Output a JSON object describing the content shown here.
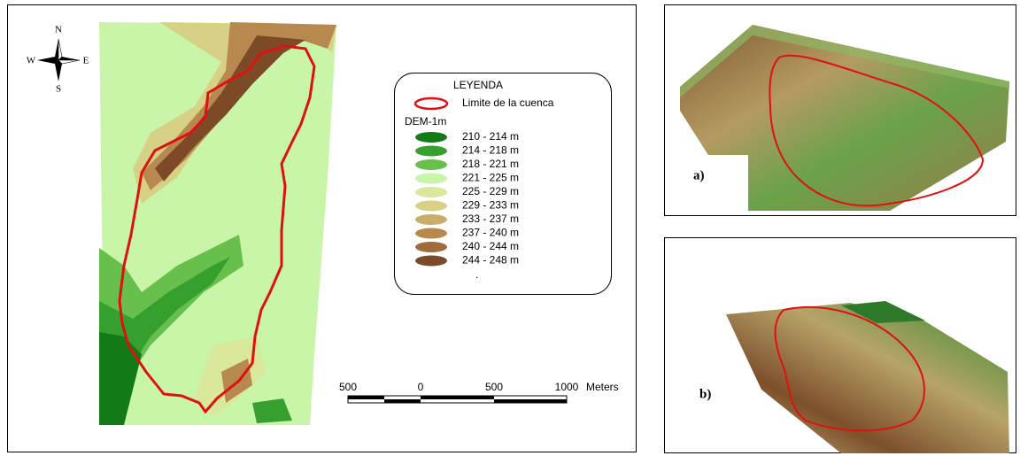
{
  "compass": {
    "n": "N",
    "s": "S",
    "e": "E",
    "w": "W"
  },
  "legend": {
    "title": "LEYENDA",
    "boundary": "Limite de la cuenca",
    "dem_title": "DEM-1m",
    "classes": [
      {
        "label": "210 - 214 m",
        "color": "#137a18"
      },
      {
        "label": "214 - 218 m",
        "color": "#36a02e"
      },
      {
        "label": "218 - 221 m",
        "color": "#67c04b"
      },
      {
        "label": "221 - 225 m",
        "color": "#c9f5a8"
      },
      {
        "label": "225 - 229 m",
        "color": "#d9e89a"
      },
      {
        "label": "229 - 233 m",
        "color": "#d7d186"
      },
      {
        "label": "233 - 237 m",
        "color": "#c9ad6a"
      },
      {
        "label": "237 - 240 m",
        "color": "#b8894e"
      },
      {
        "label": "240 - 244 m",
        "color": "#a06a3c"
      },
      {
        "label": "244 - 248 m",
        "color": "#7d4a28"
      }
    ],
    "note": "."
  },
  "scale_bar": {
    "ticks": [
      "500",
      "0",
      "500",
      "1000"
    ],
    "unit": "Meters"
  },
  "panels": {
    "a": "a)",
    "b": "b)"
  }
}
